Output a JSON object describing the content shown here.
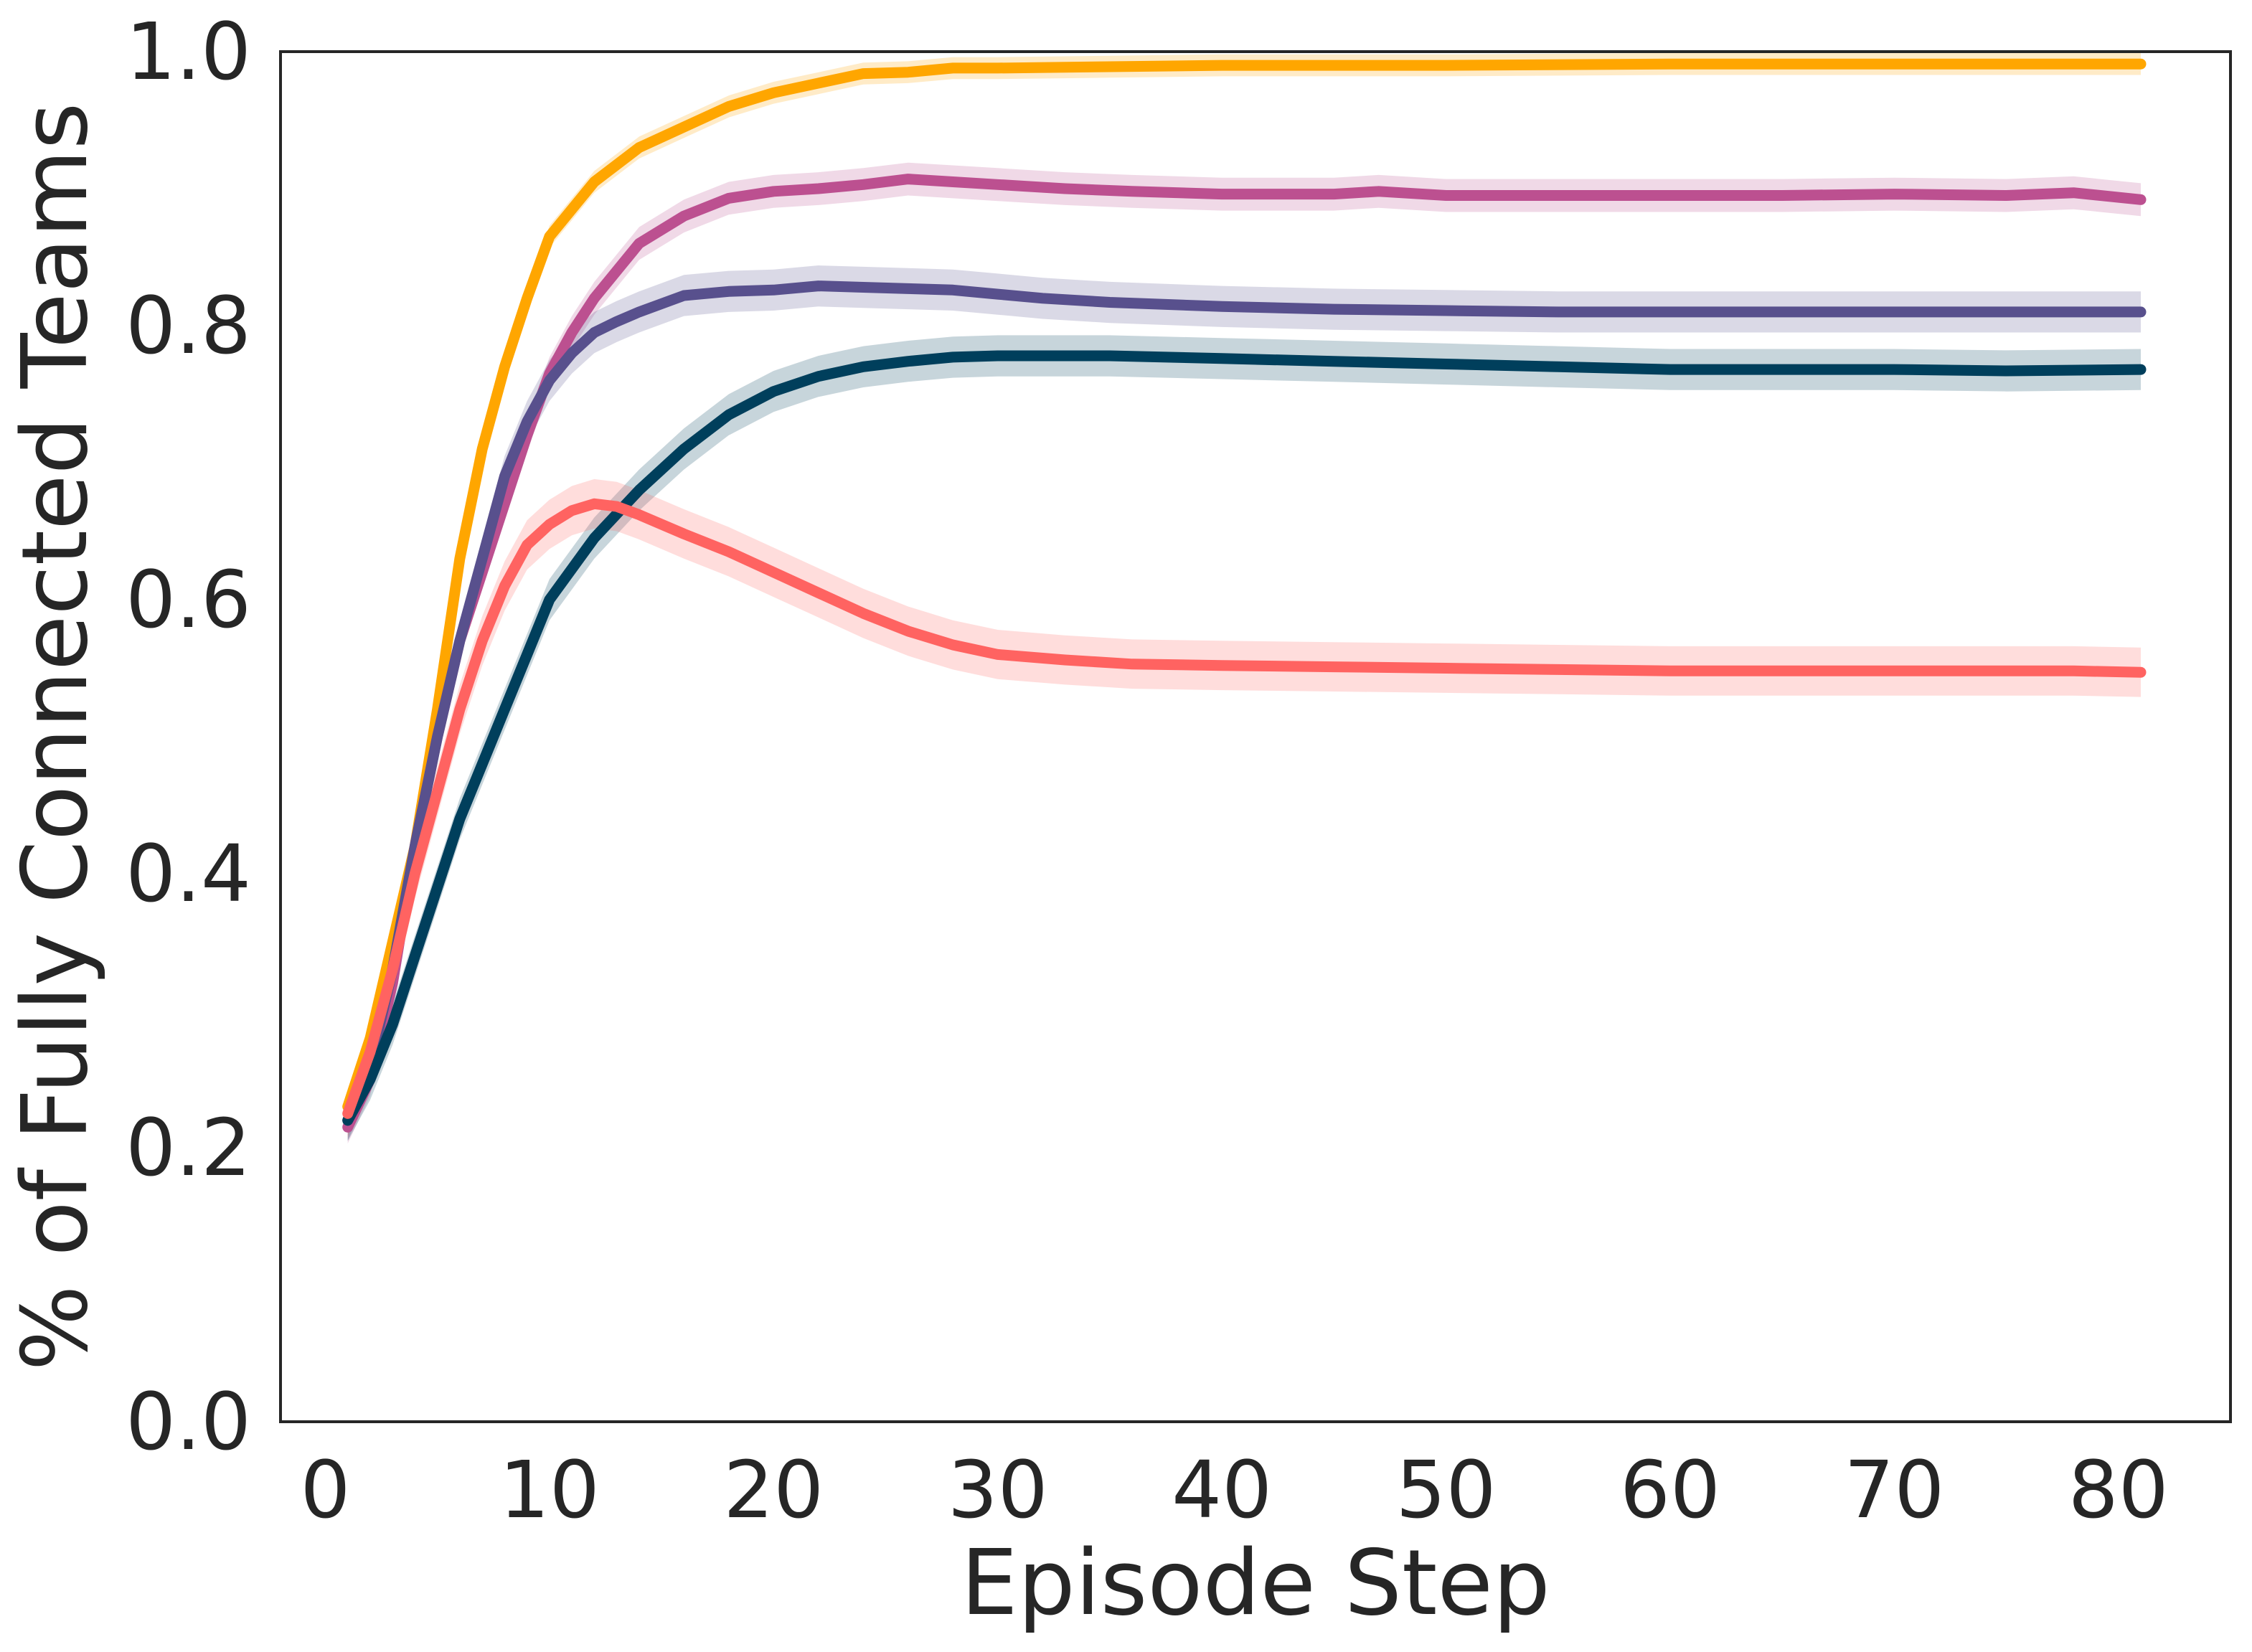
{
  "chart_data": {
    "type": "line",
    "title": "",
    "xlabel": "Episode Step",
    "ylabel": "% of Fully Connected Teams",
    "xlim": [
      -2,
      85
    ],
    "ylim": [
      0.0,
      1.0
    ],
    "xticks": [
      0,
      10,
      20,
      30,
      40,
      50,
      60,
      70,
      80
    ],
    "xtick_labels": [
      "0",
      "10",
      "20",
      "30",
      "40",
      "50",
      "60",
      "70",
      "80"
    ],
    "yticks": [
      0.0,
      0.2,
      0.4,
      0.6,
      0.8,
      1.0
    ],
    "ytick_labels": [
      "0.0",
      "0.2",
      "0.4",
      "0.6",
      "0.8",
      "1.0"
    ],
    "grid": false,
    "legend": "none",
    "series": [
      {
        "color": "#ffa600",
        "band": 0.008,
        "points": [
          [
            1,
            0.23
          ],
          [
            2,
            0.28
          ],
          [
            3,
            0.35
          ],
          [
            4,
            0.42
          ],
          [
            5,
            0.52
          ],
          [
            6,
            0.63
          ],
          [
            7,
            0.71
          ],
          [
            8,
            0.77
          ],
          [
            9,
            0.82
          ],
          [
            10,
            0.865
          ],
          [
            12,
            0.905
          ],
          [
            14,
            0.93
          ],
          [
            16,
            0.945
          ],
          [
            18,
            0.96
          ],
          [
            20,
            0.97
          ],
          [
            22,
            0.977
          ],
          [
            24,
            0.984
          ],
          [
            26,
            0.985
          ],
          [
            28,
            0.988
          ],
          [
            30,
            0.988
          ],
          [
            35,
            0.989
          ],
          [
            40,
            0.99
          ],
          [
            50,
            0.99
          ],
          [
            60,
            0.991
          ],
          [
            70,
            0.991
          ],
          [
            81,
            0.991
          ]
        ]
      },
      {
        "color": "#bc5090",
        "band": 0.012,
        "points": [
          [
            1,
            0.215
          ],
          [
            2,
            0.25
          ],
          [
            3,
            0.32
          ],
          [
            4,
            0.42
          ],
          [
            5,
            0.5
          ],
          [
            6,
            0.57
          ],
          [
            7,
            0.62
          ],
          [
            8,
            0.67
          ],
          [
            9,
            0.72
          ],
          [
            10,
            0.765
          ],
          [
            11,
            0.795
          ],
          [
            12,
            0.82
          ],
          [
            13,
            0.84
          ],
          [
            14,
            0.86
          ],
          [
            16,
            0.88
          ],
          [
            18,
            0.893
          ],
          [
            20,
            0.898
          ],
          [
            22,
            0.9
          ],
          [
            24,
            0.903
          ],
          [
            26,
            0.907
          ],
          [
            28,
            0.905
          ],
          [
            30,
            0.903
          ],
          [
            33,
            0.9
          ],
          [
            36,
            0.898
          ],
          [
            40,
            0.896
          ],
          [
            45,
            0.896
          ],
          [
            47,
            0.898
          ],
          [
            50,
            0.895
          ],
          [
            55,
            0.895
          ],
          [
            60,
            0.895
          ],
          [
            65,
            0.895
          ],
          [
            70,
            0.896
          ],
          [
            75,
            0.895
          ],
          [
            78,
            0.897
          ],
          [
            81,
            0.892
          ]
        ]
      },
      {
        "color": "#58508d",
        "band": 0.015,
        "points": [
          [
            1,
            0.22
          ],
          [
            2,
            0.26
          ],
          [
            3,
            0.33
          ],
          [
            4,
            0.42
          ],
          [
            5,
            0.5
          ],
          [
            6,
            0.57
          ],
          [
            7,
            0.63
          ],
          [
            8,
            0.69
          ],
          [
            9,
            0.73
          ],
          [
            10,
            0.76
          ],
          [
            11,
            0.78
          ],
          [
            12,
            0.795
          ],
          [
            13,
            0.803
          ],
          [
            14,
            0.81
          ],
          [
            16,
            0.822
          ],
          [
            18,
            0.825
          ],
          [
            20,
            0.826
          ],
          [
            22,
            0.829
          ],
          [
            24,
            0.828
          ],
          [
            26,
            0.827
          ],
          [
            28,
            0.826
          ],
          [
            30,
            0.823
          ],
          [
            32,
            0.82
          ],
          [
            35,
            0.817
          ],
          [
            40,
            0.814
          ],
          [
            45,
            0.812
          ],
          [
            50,
            0.811
          ],
          [
            55,
            0.81
          ],
          [
            60,
            0.81
          ],
          [
            65,
            0.81
          ],
          [
            70,
            0.81
          ],
          [
            75,
            0.81
          ],
          [
            81,
            0.81
          ]
        ]
      },
      {
        "color": "#003f5c",
        "band": 0.015,
        "points": [
          [
            1,
            0.22
          ],
          [
            2,
            0.25
          ],
          [
            3,
            0.29
          ],
          [
            4,
            0.34
          ],
          [
            5,
            0.39
          ],
          [
            6,
            0.44
          ],
          [
            7,
            0.48
          ],
          [
            8,
            0.52
          ],
          [
            9,
            0.56
          ],
          [
            10,
            0.6
          ],
          [
            12,
            0.645
          ],
          [
            14,
            0.68
          ],
          [
            16,
            0.71
          ],
          [
            18,
            0.735
          ],
          [
            20,
            0.752
          ],
          [
            22,
            0.763
          ],
          [
            24,
            0.77
          ],
          [
            26,
            0.774
          ],
          [
            28,
            0.777
          ],
          [
            30,
            0.778
          ],
          [
            32,
            0.778
          ],
          [
            35,
            0.778
          ],
          [
            40,
            0.776
          ],
          [
            45,
            0.774
          ],
          [
            50,
            0.772
          ],
          [
            55,
            0.77
          ],
          [
            60,
            0.768
          ],
          [
            65,
            0.768
          ],
          [
            70,
            0.768
          ],
          [
            75,
            0.767
          ],
          [
            81,
            0.768
          ]
        ]
      },
      {
        "color": "#ff6361",
        "band": 0.018,
        "points": [
          [
            1,
            0.225
          ],
          [
            2,
            0.27
          ],
          [
            3,
            0.33
          ],
          [
            4,
            0.4
          ],
          [
            5,
            0.46
          ],
          [
            6,
            0.52
          ],
          [
            7,
            0.57
          ],
          [
            8,
            0.61
          ],
          [
            9,
            0.64
          ],
          [
            10,
            0.655
          ],
          [
            11,
            0.665
          ],
          [
            12,
            0.67
          ],
          [
            13,
            0.668
          ],
          [
            14,
            0.662
          ],
          [
            16,
            0.648
          ],
          [
            18,
            0.635
          ],
          [
            20,
            0.62
          ],
          [
            22,
            0.605
          ],
          [
            24,
            0.59
          ],
          [
            26,
            0.577
          ],
          [
            28,
            0.567
          ],
          [
            30,
            0.56
          ],
          [
            33,
            0.556
          ],
          [
            36,
            0.553
          ],
          [
            40,
            0.552
          ],
          [
            45,
            0.551
          ],
          [
            50,
            0.55
          ],
          [
            55,
            0.549
          ],
          [
            60,
            0.548
          ],
          [
            65,
            0.548
          ],
          [
            70,
            0.548
          ],
          [
            75,
            0.548
          ],
          [
            78,
            0.548
          ],
          [
            81,
            0.547
          ]
        ]
      }
    ]
  }
}
